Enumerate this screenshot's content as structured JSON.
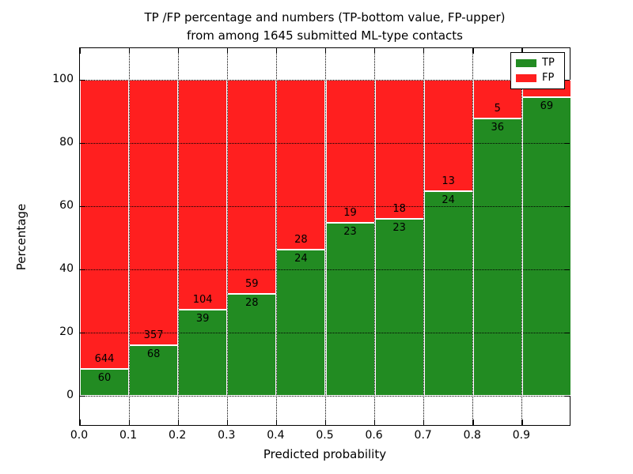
{
  "title": {
    "line1": "TP /FP percentage and numbers (TP-bottom value, FP-upper)",
    "line2": "from among 1645 submitted ML-type contacts"
  },
  "axes": {
    "xlabel": "Predicted probability",
    "ylabel": "Percentage",
    "x_tick_labels": [
      "0.0",
      "0.1",
      "0.2",
      "0.3",
      "0.4",
      "0.5",
      "0.6",
      "0.7",
      "0.8",
      "0.9"
    ],
    "y_tick_labels": [
      "0",
      "20",
      "40",
      "60",
      "80",
      "100"
    ]
  },
  "legend": {
    "items": [
      {
        "label": "TP",
        "color": "#228b22"
      },
      {
        "label": "FP",
        "color": "#ff1f1f"
      }
    ]
  },
  "colors": {
    "tp": "#228b22",
    "fp": "#ff1f1f",
    "grid": "#000000",
    "background": "#ffffff"
  },
  "chart_data": {
    "type": "bar",
    "stacked": true,
    "normalized": "each bar normalized to 100 percent",
    "title": "TP /FP percentage and numbers (TP-bottom value, FP-upper) from among 1645 submitted ML-type contacts",
    "xlabel": "Predicted probability",
    "ylabel": "Percentage",
    "total_submitted_contacts": 1645,
    "bins": [
      "0.0-0.1",
      "0.1-0.2",
      "0.2-0.3",
      "0.3-0.4",
      "0.4-0.5",
      "0.5-0.6",
      "0.6-0.7",
      "0.7-0.8",
      "0.8-0.9",
      "0.9-1.0"
    ],
    "x_ticks": [
      0.0,
      0.1,
      0.2,
      0.3,
      0.4,
      0.5,
      0.6,
      0.7,
      0.8,
      0.9
    ],
    "y_ticks": [
      0,
      20,
      40,
      60,
      80,
      100
    ],
    "ylim": [
      -10,
      110
    ],
    "grid": true,
    "legend_position": "upper right",
    "series": [
      {
        "name": "TP",
        "color": "#228b22",
        "counts": [
          60,
          68,
          39,
          28,
          24,
          23,
          23,
          24,
          36,
          69
        ],
        "labels": [
          "60",
          "68",
          "39",
          "28",
          "24",
          "23",
          "23",
          "24",
          "36",
          "69"
        ]
      },
      {
        "name": "FP",
        "color": "#ff1f1f",
        "counts": [
          644,
          357,
          104,
          59,
          28,
          19,
          18,
          13,
          5,
          null
        ],
        "labels": [
          "644",
          "357",
          "104",
          "59",
          "28",
          "19",
          "18",
          "13",
          "5",
          ""
        ]
      }
    ],
    "tp_percent": [
      8.52,
      16.0,
      27.27,
      32.18,
      46.15,
      54.76,
      56.1,
      64.86,
      87.8,
      94.5
    ]
  }
}
